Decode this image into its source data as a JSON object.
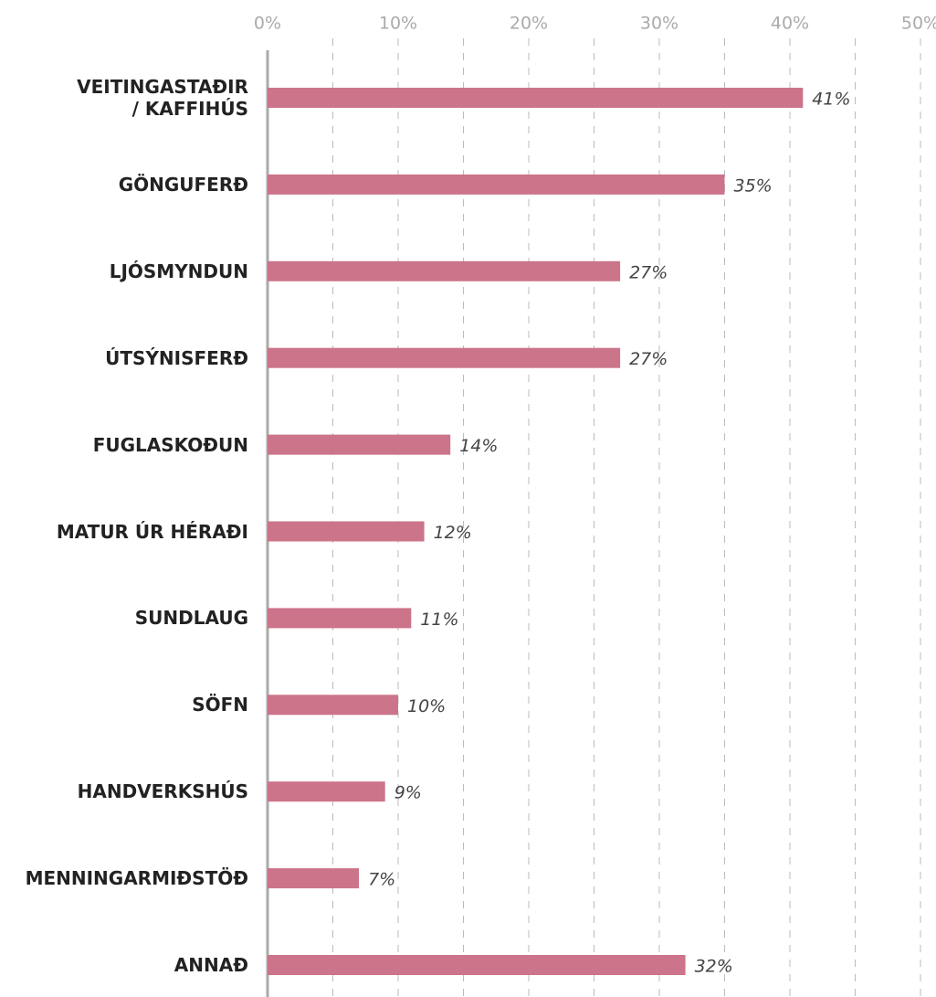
{
  "chart_data": {
    "type": "barh",
    "categories": [
      "VEITINGASTAÐIR\n/ KAFFIHÚS",
      "GÖNGUFERÐ",
      "LJÓSMYNDUN",
      "ÚTSÝNISFERÐ",
      "FUGLASKOÐUN",
      "MATUR ÚR HÉRAÐI",
      "SUNDLAUG",
      "SÖFN",
      "HANDVERKSHÚS",
      "MENNINGARMIÐSTÖÐ",
      "ANNAÐ"
    ],
    "values": [
      41,
      35,
      27,
      27,
      14,
      12,
      11,
      10,
      9,
      7,
      32
    ],
    "value_labels": [
      "41%",
      "35%",
      "27%",
      "27%",
      "14%",
      "12%",
      "11%",
      "10%",
      "9%",
      "7%",
      "32%"
    ],
    "color": "#cc7489",
    "xlim": [
      0,
      50
    ],
    "xticks": [
      {
        "value": 0,
        "label": "0%"
      },
      {
        "value": 10,
        "label": "10%"
      },
      {
        "value": 20,
        "label": "20%"
      },
      {
        "value": 30,
        "label": "30%"
      },
      {
        "value": 40,
        "label": "40%"
      },
      {
        "value": 50,
        "label": "50%"
      }
    ],
    "minor_gridlines": [
      5,
      15,
      25,
      35,
      45
    ],
    "grid": true
  }
}
